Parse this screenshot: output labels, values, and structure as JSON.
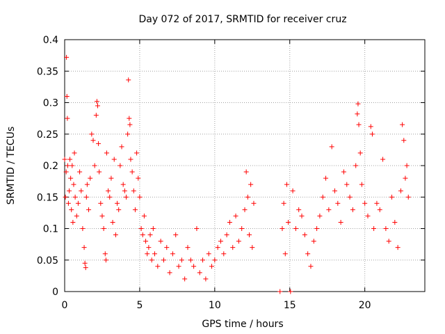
{
  "chart_data": {
    "type": "scatter",
    "title": "Day 072 of 2017, SRMTID for receiver cruz",
    "xlabel": "GPS time / hours",
    "ylabel": "SRMTID / TECUs",
    "xlim": [
      0,
      24
    ],
    "ylim": [
      0,
      0.4
    ],
    "xticks": [
      0,
      5,
      10,
      15,
      20
    ],
    "yticks": [
      0,
      0.05,
      0.1,
      0.15,
      0.2,
      0.25,
      0.3,
      0.35,
      0.4
    ],
    "xtick_labels": [
      "0",
      "5",
      "10",
      "15",
      "20"
    ],
    "ytick_labels": [
      "0",
      "0.05",
      "0.1",
      "0.15",
      "0.2",
      "0.25",
      "0.3",
      "0.35",
      "0.4"
    ],
    "grid": true,
    "marker": "+",
    "colors": {
      "points": "#ff0000",
      "grid": "#a0a0a0",
      "axes": "#000000"
    },
    "series": [
      {
        "name": "SRMTID",
        "points": [
          [
            0.0,
            0.21
          ],
          [
            0.05,
            0.15
          ],
          [
            0.1,
            0.19
          ],
          [
            0.12,
            0.372
          ],
          [
            0.15,
            0.31
          ],
          [
            0.18,
            0.275
          ],
          [
            0.2,
            0.2
          ],
          [
            0.25,
            0.14
          ],
          [
            0.3,
            0.16
          ],
          [
            0.35,
            0.21
          ],
          [
            0.4,
            0.18
          ],
          [
            0.45,
            0.13
          ],
          [
            0.5,
            0.2
          ],
          [
            0.55,
            0.11
          ],
          [
            0.6,
            0.17
          ],
          [
            0.65,
            0.22
          ],
          [
            0.7,
            0.15
          ],
          [
            0.8,
            0.12
          ],
          [
            0.9,
            0.14
          ],
          [
            1.0,
            0.19
          ],
          [
            1.1,
            0.16
          ],
          [
            1.2,
            0.1
          ],
          [
            1.3,
            0.07
          ],
          [
            1.35,
            0.045
          ],
          [
            1.4,
            0.038
          ],
          [
            1.45,
            0.15
          ],
          [
            1.5,
            0.17
          ],
          [
            1.6,
            0.13
          ],
          [
            1.7,
            0.18
          ],
          [
            1.8,
            0.25
          ],
          [
            1.9,
            0.24
          ],
          [
            2.0,
            0.2
          ],
          [
            2.1,
            0.28
          ],
          [
            2.15,
            0.302
          ],
          [
            2.2,
            0.295
          ],
          [
            2.25,
            0.235
          ],
          [
            2.3,
            0.19
          ],
          [
            2.4,
            0.14
          ],
          [
            2.5,
            0.12
          ],
          [
            2.6,
            0.1
          ],
          [
            2.7,
            0.06
          ],
          [
            2.75,
            0.05
          ],
          [
            2.8,
            0.22
          ],
          [
            2.9,
            0.16
          ],
          [
            3.0,
            0.15
          ],
          [
            3.1,
            0.18
          ],
          [
            3.2,
            0.11
          ],
          [
            3.3,
            0.21
          ],
          [
            3.4,
            0.09
          ],
          [
            3.5,
            0.14
          ],
          [
            3.6,
            0.13
          ],
          [
            3.7,
            0.2
          ],
          [
            3.8,
            0.23
          ],
          [
            3.9,
            0.17
          ],
          [
            4.0,
            0.16
          ],
          [
            4.1,
            0.15
          ],
          [
            4.2,
            0.25
          ],
          [
            4.25,
            0.336
          ],
          [
            4.3,
            0.275
          ],
          [
            4.35,
            0.265
          ],
          [
            4.4,
            0.21
          ],
          [
            4.5,
            0.19
          ],
          [
            4.6,
            0.16
          ],
          [
            4.7,
            0.13
          ],
          [
            4.8,
            0.22
          ],
          [
            4.9,
            0.18
          ],
          [
            5.0,
            0.15
          ],
          [
            5.1,
            0.1
          ],
          [
            5.2,
            0.09
          ],
          [
            5.3,
            0.12
          ],
          [
            5.4,
            0.08
          ],
          [
            5.5,
            0.06
          ],
          [
            5.6,
            0.07
          ],
          [
            5.7,
            0.09
          ],
          [
            5.8,
            0.05
          ],
          [
            5.9,
            0.1
          ],
          [
            6.0,
            0.06
          ],
          [
            6.2,
            0.04
          ],
          [
            6.4,
            0.08
          ],
          [
            6.6,
            0.05
          ],
          [
            6.8,
            0.07
          ],
          [
            7.0,
            0.03
          ],
          [
            7.2,
            0.06
          ],
          [
            7.4,
            0.09
          ],
          [
            7.6,
            0.04
          ],
          [
            7.8,
            0.05
          ],
          [
            8.0,
            0.02
          ],
          [
            8.2,
            0.07
          ],
          [
            8.4,
            0.05
          ],
          [
            8.6,
            0.04
          ],
          [
            8.8,
            0.1
          ],
          [
            9.0,
            0.03
          ],
          [
            9.2,
            0.05
          ],
          [
            9.4,
            0.02
          ],
          [
            9.6,
            0.06
          ],
          [
            9.8,
            0.04
          ],
          [
            10.0,
            0.05
          ],
          [
            10.2,
            0.07
          ],
          [
            10.4,
            0.08
          ],
          [
            10.6,
            0.06
          ],
          [
            10.8,
            0.09
          ],
          [
            11.0,
            0.11
          ],
          [
            11.2,
            0.07
          ],
          [
            11.4,
            0.12
          ],
          [
            11.6,
            0.08
          ],
          [
            11.8,
            0.1
          ],
          [
            12.0,
            0.13
          ],
          [
            12.1,
            0.19
          ],
          [
            12.2,
            0.15
          ],
          [
            12.3,
            0.09
          ],
          [
            12.4,
            0.17
          ],
          [
            12.5,
            0.07
          ],
          [
            12.6,
            0.14
          ],
          [
            14.35,
            0.0
          ],
          [
            14.5,
            0.1
          ],
          [
            14.6,
            0.14
          ],
          [
            14.7,
            0.06
          ],
          [
            14.8,
            0.17
          ],
          [
            14.9,
            0.11
          ],
          [
            15.05,
            0.0
          ],
          [
            15.2,
            0.16
          ],
          [
            15.4,
            0.1
          ],
          [
            15.6,
            0.13
          ],
          [
            15.8,
            0.12
          ],
          [
            16.0,
            0.09
          ],
          [
            16.2,
            0.06
          ],
          [
            16.4,
            0.04
          ],
          [
            16.6,
            0.08
          ],
          [
            16.8,
            0.1
          ],
          [
            17.0,
            0.12
          ],
          [
            17.2,
            0.15
          ],
          [
            17.4,
            0.18
          ],
          [
            17.6,
            0.13
          ],
          [
            17.8,
            0.23
          ],
          [
            18.0,
            0.16
          ],
          [
            18.2,
            0.14
          ],
          [
            18.4,
            0.11
          ],
          [
            18.6,
            0.19
          ],
          [
            18.8,
            0.17
          ],
          [
            19.0,
            0.15
          ],
          [
            19.2,
            0.13
          ],
          [
            19.4,
            0.2
          ],
          [
            19.5,
            0.282
          ],
          [
            19.55,
            0.298
          ],
          [
            19.6,
            0.265
          ],
          [
            19.7,
            0.22
          ],
          [
            19.8,
            0.17
          ],
          [
            20.0,
            0.14
          ],
          [
            20.2,
            0.12
          ],
          [
            20.4,
            0.262
          ],
          [
            20.5,
            0.25
          ],
          [
            20.6,
            0.1
          ],
          [
            20.8,
            0.14
          ],
          [
            21.0,
            0.13
          ],
          [
            21.2,
            0.21
          ],
          [
            21.4,
            0.1
          ],
          [
            21.6,
            0.08
          ],
          [
            21.8,
            0.15
          ],
          [
            22.0,
            0.11
          ],
          [
            22.2,
            0.07
          ],
          [
            22.4,
            0.16
          ],
          [
            22.5,
            0.265
          ],
          [
            22.6,
            0.24
          ],
          [
            22.7,
            0.18
          ],
          [
            22.8,
            0.2
          ],
          [
            22.9,
            0.15
          ]
        ]
      }
    ]
  }
}
